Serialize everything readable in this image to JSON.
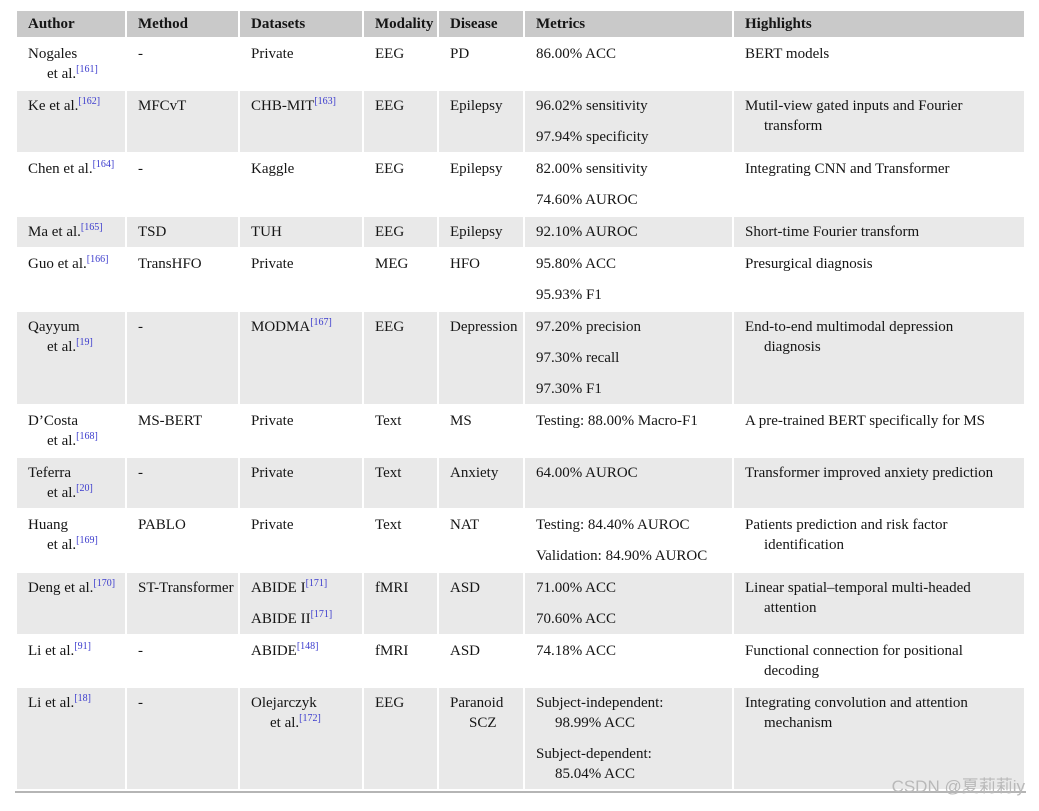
{
  "watermark": {
    "text": "CSDN @夏莉莉iy"
  },
  "colors": {
    "header_bg": "#c9c9c9",
    "stripe_bg": "#e9e9e9",
    "citation_link": "#3b3bcd",
    "bottom_border": "#b5b5b5",
    "watermark_text": "#b9b9b9"
  },
  "table": {
    "columns": [
      {
        "key": "author",
        "label": "Author"
      },
      {
        "key": "method",
        "label": "Method"
      },
      {
        "key": "datasets",
        "label": "Datasets"
      },
      {
        "key": "modality",
        "label": "Modality"
      },
      {
        "key": "disease",
        "label": "Disease"
      },
      {
        "key": "metrics",
        "label": "Metrics"
      },
      {
        "key": "highlights",
        "label": "Highlights"
      }
    ],
    "rows": [
      {
        "cells": {
          "author": [
            [
              {
                "text": "Nogales"
              },
              {
                "text": "et al.",
                "cite": "[161]"
              }
            ]
          ],
          "method": [
            [
              {
                "text": "-"
              }
            ]
          ],
          "datasets": [
            [
              {
                "text": "Private"
              }
            ]
          ],
          "modality": [
            [
              {
                "text": "EEG"
              }
            ]
          ],
          "disease": [
            [
              {
                "text": "PD"
              }
            ]
          ],
          "metrics": [
            [
              {
                "text": "86.00% ACC"
              }
            ]
          ],
          "highlights": [
            [
              {
                "text": "BERT models"
              }
            ]
          ]
        }
      },
      {
        "cells": {
          "author": [
            [
              {
                "text": "Ke et al.",
                "cite": "[162]"
              }
            ]
          ],
          "method": [
            [
              {
                "text": "MFCvT"
              }
            ]
          ],
          "datasets": [
            [
              {
                "text": "CHB-MIT",
                "cite": "[163]"
              }
            ]
          ],
          "modality": [
            [
              {
                "text": "EEG"
              }
            ]
          ],
          "disease": [
            [
              {
                "text": "Epilepsy"
              }
            ]
          ],
          "metrics": [
            [
              {
                "text": "96.02% sensitivity"
              }
            ],
            [
              {
                "text": "97.94% specificity"
              }
            ]
          ],
          "highlights": [
            [
              {
                "text": "Mutil-view gated inputs and Fourier"
              },
              {
                "text": "transform"
              }
            ]
          ]
        }
      },
      {
        "cells": {
          "author": [
            [
              {
                "text": "Chen et al.",
                "cite": "[164]"
              }
            ]
          ],
          "method": [
            [
              {
                "text": "-"
              }
            ]
          ],
          "datasets": [
            [
              {
                "text": "Kaggle"
              }
            ]
          ],
          "modality": [
            [
              {
                "text": "EEG"
              }
            ]
          ],
          "disease": [
            [
              {
                "text": "Epilepsy"
              }
            ]
          ],
          "metrics": [
            [
              {
                "text": "82.00% sensitivity"
              }
            ],
            [
              {
                "text": "74.60% AUROC"
              }
            ]
          ],
          "highlights": [
            [
              {
                "text": "Integrating CNN and Transformer"
              }
            ]
          ]
        }
      },
      {
        "cells": {
          "author": [
            [
              {
                "text": "Ma et al.",
                "cite": "[165]"
              }
            ]
          ],
          "method": [
            [
              {
                "text": "TSD"
              }
            ]
          ],
          "datasets": [
            [
              {
                "text": "TUH"
              }
            ]
          ],
          "modality": [
            [
              {
                "text": "EEG"
              }
            ]
          ],
          "disease": [
            [
              {
                "text": "Epilepsy"
              }
            ]
          ],
          "metrics": [
            [
              {
                "text": "92.10% AUROC"
              }
            ]
          ],
          "highlights": [
            [
              {
                "text": "Short-time Fourier transform"
              }
            ]
          ]
        }
      },
      {
        "cells": {
          "author": [
            [
              {
                "text": "Guo et al.",
                "cite": "[166]"
              }
            ]
          ],
          "method": [
            [
              {
                "text": "TransHFO"
              }
            ]
          ],
          "datasets": [
            [
              {
                "text": "Private"
              }
            ]
          ],
          "modality": [
            [
              {
                "text": "MEG"
              }
            ]
          ],
          "disease": [
            [
              {
                "text": "HFO"
              }
            ]
          ],
          "metrics": [
            [
              {
                "text": "95.80% ACC"
              }
            ],
            [
              {
                "text": "95.93% F1"
              }
            ]
          ],
          "highlights": [
            [
              {
                "text": "Presurgical diagnosis"
              }
            ]
          ]
        }
      },
      {
        "cells": {
          "author": [
            [
              {
                "text": "Qayyum"
              },
              {
                "text": "et al.",
                "cite": "[19]"
              }
            ]
          ],
          "method": [
            [
              {
                "text": "-"
              }
            ]
          ],
          "datasets": [
            [
              {
                "text": "MODMA",
                "cite": "[167]"
              }
            ]
          ],
          "modality": [
            [
              {
                "text": "EEG"
              }
            ]
          ],
          "disease": [
            [
              {
                "text": "Depression"
              }
            ]
          ],
          "metrics": [
            [
              {
                "text": "97.20% precision"
              }
            ],
            [
              {
                "text": "97.30% recall"
              }
            ],
            [
              {
                "text": "97.30% F1"
              }
            ]
          ],
          "highlights": [
            [
              {
                "text": "End-to-end multimodal depression"
              },
              {
                "text": "diagnosis"
              }
            ]
          ]
        }
      },
      {
        "cells": {
          "author": [
            [
              {
                "text": "D’Costa"
              },
              {
                "text": "et al.",
                "cite": "[168]"
              }
            ]
          ],
          "method": [
            [
              {
                "text": "MS-BERT"
              }
            ]
          ],
          "datasets": [
            [
              {
                "text": "Private"
              }
            ]
          ],
          "modality": [
            [
              {
                "text": "Text"
              }
            ]
          ],
          "disease": [
            [
              {
                "text": "MS"
              }
            ]
          ],
          "metrics": [
            [
              {
                "text": "Testing: 88.00% Macro-F1"
              }
            ]
          ],
          "highlights": [
            [
              {
                "text": "A pre-trained BERT specifically for MS"
              }
            ]
          ]
        }
      },
      {
        "cells": {
          "author": [
            [
              {
                "text": "Teferra"
              },
              {
                "text": "et al.",
                "cite": "[20]"
              }
            ]
          ],
          "method": [
            [
              {
                "text": "-"
              }
            ]
          ],
          "datasets": [
            [
              {
                "text": "Private"
              }
            ]
          ],
          "modality": [
            [
              {
                "text": "Text"
              }
            ]
          ],
          "disease": [
            [
              {
                "text": "Anxiety"
              }
            ]
          ],
          "metrics": [
            [
              {
                "text": "64.00% AUROC"
              }
            ]
          ],
          "highlights": [
            [
              {
                "text": "Transformer improved anxiety prediction"
              }
            ]
          ]
        }
      },
      {
        "cells": {
          "author": [
            [
              {
                "text": "Huang"
              },
              {
                "text": "et al.",
                "cite": "[169]"
              }
            ]
          ],
          "method": [
            [
              {
                "text": "PABLO"
              }
            ]
          ],
          "datasets": [
            [
              {
                "text": "Private"
              }
            ]
          ],
          "modality": [
            [
              {
                "text": "Text"
              }
            ]
          ],
          "disease": [
            [
              {
                "text": "NAT"
              }
            ]
          ],
          "metrics": [
            [
              {
                "text": "Testing: 84.40% AUROC"
              }
            ],
            [
              {
                "text": "Validation: 84.90% AUROC"
              }
            ]
          ],
          "highlights": [
            [
              {
                "text": "Patients prediction and risk factor"
              },
              {
                "text": "identification"
              }
            ]
          ]
        }
      },
      {
        "cells": {
          "author": [
            [
              {
                "text": "Deng et al.",
                "cite": "[170]"
              }
            ]
          ],
          "method": [
            [
              {
                "text": "ST-Transformer"
              }
            ]
          ],
          "datasets": [
            [
              {
                "text": "ABIDE I",
                "cite": "[171]"
              }
            ],
            [
              {
                "text": "ABIDE II",
                "cite": "[171]"
              }
            ]
          ],
          "modality": [
            [
              {
                "text": "fMRI"
              }
            ]
          ],
          "disease": [
            [
              {
                "text": "ASD"
              }
            ]
          ],
          "metrics": [
            [
              {
                "text": "71.00% ACC"
              }
            ],
            [
              {
                "text": "70.60% ACC"
              }
            ]
          ],
          "highlights": [
            [
              {
                "text": "Linear spatial–temporal multi-headed"
              },
              {
                "text": "attention"
              }
            ]
          ]
        }
      },
      {
        "cells": {
          "author": [
            [
              {
                "text": "Li et al.",
                "cite": "[91]"
              }
            ]
          ],
          "method": [
            [
              {
                "text": "-"
              }
            ]
          ],
          "datasets": [
            [
              {
                "text": "ABIDE",
                "cite": "[148]"
              }
            ]
          ],
          "modality": [
            [
              {
                "text": "fMRI"
              }
            ]
          ],
          "disease": [
            [
              {
                "text": "ASD"
              }
            ]
          ],
          "metrics": [
            [
              {
                "text": "74.18% ACC"
              }
            ]
          ],
          "highlights": [
            [
              {
                "text": "Functional connection for positional"
              },
              {
                "text": "decoding"
              }
            ]
          ]
        }
      },
      {
        "cells": {
          "author": [
            [
              {
                "text": "Li et al.",
                "cite": "[18]"
              }
            ]
          ],
          "method": [
            [
              {
                "text": "-"
              }
            ]
          ],
          "datasets": [
            [
              {
                "text": "Olejarczyk"
              },
              {
                "text": "et al.",
                "cite": "[172]"
              }
            ]
          ],
          "modality": [
            [
              {
                "text": "EEG"
              }
            ]
          ],
          "disease": [
            [
              {
                "text": "Paranoid"
              },
              {
                "text": "SCZ"
              }
            ]
          ],
          "metrics": [
            [
              {
                "text": "Subject-independent:"
              },
              {
                "text": "98.99% ACC"
              }
            ],
            [
              {
                "text": "Subject-dependent:"
              },
              {
                "text": "85.04% ACC"
              }
            ]
          ],
          "highlights": [
            [
              {
                "text": "Integrating convolution and attention"
              },
              {
                "text": "mechanism"
              }
            ]
          ]
        }
      }
    ]
  }
}
